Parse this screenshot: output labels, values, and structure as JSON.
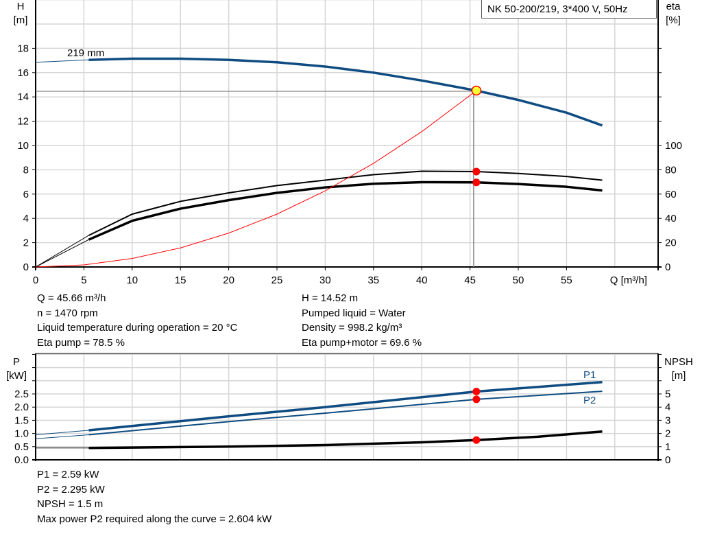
{
  "title": "NK 50-200/219, 3*400 V, 50Hz",
  "chart_data": [
    {
      "type": "line",
      "name": "head-efficiency-chart",
      "xlabel": "Q [m³/h]",
      "ylabel_left": [
        "H",
        "[m]"
      ],
      "ylabel_right": [
        "eta",
        "[%]"
      ],
      "xlim": [
        0,
        60
      ],
      "ylim_left": [
        0,
        22
      ],
      "ylim_right": [
        0,
        220
      ],
      "x_ticks": [
        0,
        5,
        10,
        15,
        20,
        25,
        30,
        35,
        40,
        45,
        50,
        55
      ],
      "y_ticks_left": [
        0,
        2,
        4,
        6,
        8,
        10,
        12,
        14,
        16,
        18
      ],
      "y_ticks_right": [
        0,
        20,
        40,
        60,
        80,
        100
      ],
      "grid": true,
      "curve_label": "219 mm",
      "series": [
        {
          "key": "head",
          "axis": "left",
          "color": "#0f4c81",
          "x": [
            0,
            5.5,
            10,
            15,
            20,
            25,
            30,
            35,
            40,
            45.66,
            50,
            55,
            58.7
          ],
          "y": [
            16.85,
            17.05,
            17.15,
            17.15,
            17.05,
            16.85,
            16.5,
            16.0,
            15.35,
            14.52,
            13.75,
            12.7,
            11.65
          ]
        },
        {
          "key": "eta_pump",
          "axis": "right",
          "color": "#000000",
          "x": [
            0,
            5.5,
            10,
            15,
            20,
            25,
            30,
            35,
            40,
            45.66,
            50,
            55,
            58.7
          ],
          "y": [
            0,
            26,
            43.5,
            54,
            61,
            67,
            71.5,
            76,
            78.8,
            78.5,
            77,
            74.5,
            71.5
          ]
        },
        {
          "key": "eta_pump_motor",
          "axis": "right",
          "color": "#000000",
          "x": [
            0,
            5.5,
            10,
            15,
            20,
            25,
            30,
            35,
            40,
            45.66,
            50,
            55,
            58.7
          ],
          "y": [
            0,
            22.5,
            38,
            48,
            55,
            61,
            65.5,
            68.5,
            69.8,
            69.6,
            68.3,
            66,
            63
          ]
        },
        {
          "key": "system_curve",
          "axis": "left",
          "color": "#ff0000",
          "x": [
            0,
            5,
            10,
            15,
            20,
            25,
            30,
            35,
            40,
            45.66
          ],
          "y": [
            0,
            0.17,
            0.7,
            1.57,
            2.79,
            4.35,
            6.27,
            8.53,
            11.14,
            14.52
          ]
        }
      ],
      "duty_point": {
        "q": 45.66,
        "h": 14.52,
        "eta_pump": 78.5,
        "eta_pump_motor": 69.6
      }
    },
    {
      "type": "line",
      "name": "power-npsh-chart",
      "ylabel_left": [
        "P",
        "[kW]"
      ],
      "ylabel_right": [
        "NPSH",
        "[m]"
      ],
      "xlim": [
        0,
        60
      ],
      "ylim_left": [
        0,
        4
      ],
      "ylim_right": [
        0,
        8
      ],
      "y_ticks_left": [
        "0.0",
        "0.5",
        "1.0",
        "1.5",
        "2.0",
        "2.5"
      ],
      "y_ticks_right": [
        0,
        1,
        2,
        3,
        4,
        5
      ],
      "grid": true,
      "series": [
        {
          "key": "P1",
          "name": "P1",
          "axis": "left",
          "color": "#0f4c81",
          "x": [
            0,
            5.5,
            20,
            30,
            45.66,
            58.7
          ],
          "y": [
            0.95,
            1.12,
            1.65,
            2.0,
            2.59,
            2.95
          ]
        },
        {
          "key": "P2",
          "name": "P2",
          "axis": "left",
          "color": "#0f4c81",
          "x": [
            0,
            5.5,
            20,
            30,
            45.66,
            58.7
          ],
          "y": [
            0.8,
            0.95,
            1.45,
            1.77,
            2.295,
            2.6
          ]
        },
        {
          "key": "NPSH",
          "axis": "right",
          "color": "#000000",
          "x": [
            0,
            5.5,
            20,
            30,
            40,
            45.66,
            52,
            58.7
          ],
          "y": [
            0.9,
            0.9,
            1.0,
            1.12,
            1.33,
            1.5,
            1.75,
            2.15
          ]
        }
      ],
      "duty_point": {
        "q": 45.66,
        "p1": 2.59,
        "p2": 2.295,
        "npsh": 1.5
      }
    }
  ],
  "info_top_left": [
    "Q = 45.66 m³/h",
    "n = 1470 rpm",
    "Liquid temperature during operation = 20 °C",
    "Eta pump = 78.5 %"
  ],
  "info_top_right": [
    "H = 14.52 m",
    "Pumped liquid = Water",
    "Density = 998.2 kg/m³",
    "Eta pump+motor = 69.6 %"
  ],
  "info_bottom": [
    "P1 = 2.59 kW",
    "P2 = 2.295 kW",
    "NPSH = 1.5 m",
    "Max power P2 required along the curve = 2.604 kW"
  ]
}
